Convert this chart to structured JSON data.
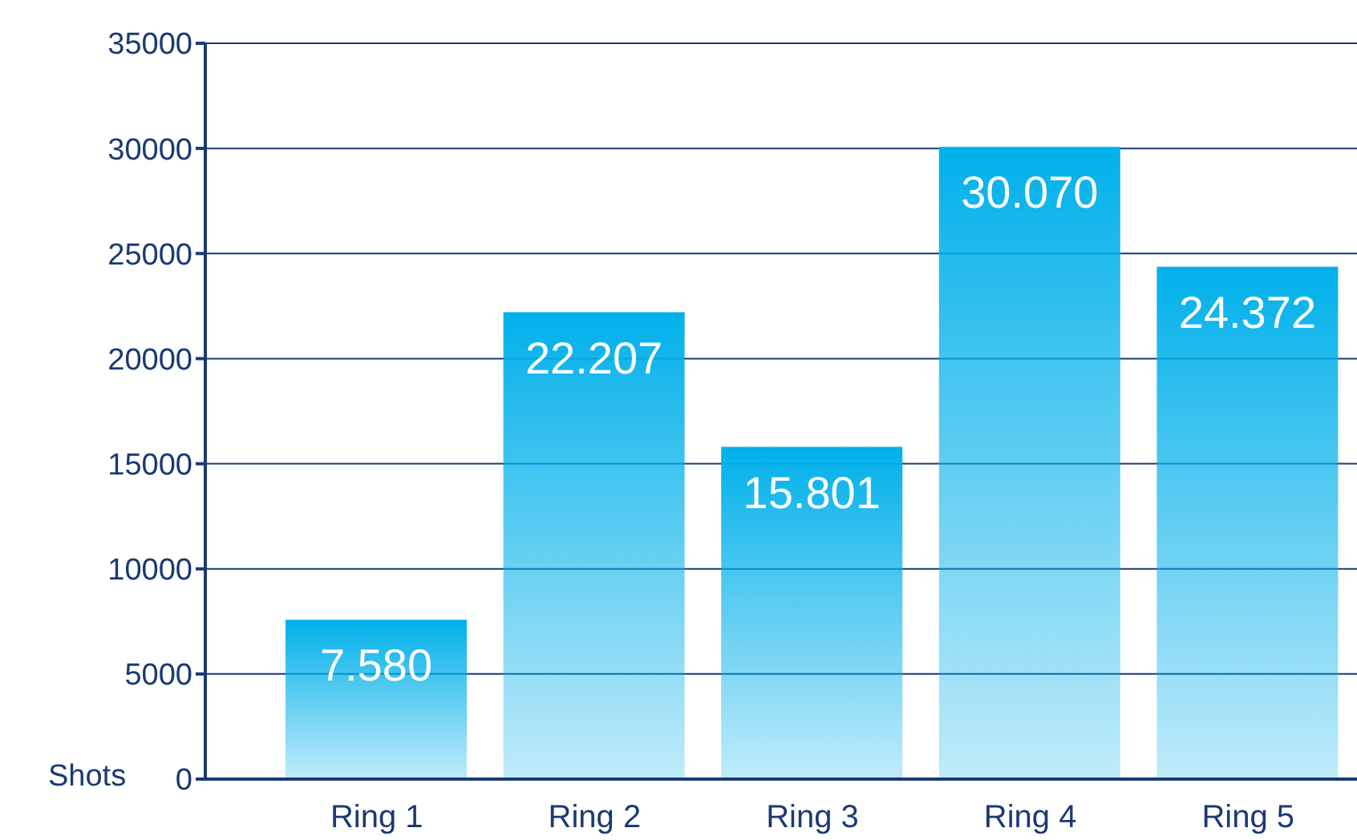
{
  "chart_data": {
    "type": "bar",
    "ylabel": "Shots",
    "categories": [
      "Ring 1",
      "Ring 2",
      "Ring 3",
      "Ring 4",
      "Ring 5"
    ],
    "values": [
      7580,
      22207,
      15801,
      30070,
      24372
    ],
    "value_labels": [
      "7.580",
      "22.207",
      "15.801",
      "30.070",
      "24.372"
    ],
    "color": "#00b0ea",
    "ylim": [
      0,
      35000
    ],
    "yticks": [
      0,
      5000,
      10000,
      15000,
      20000,
      25000,
      30000,
      35000
    ],
    "grid": "y",
    "legend": false
  }
}
